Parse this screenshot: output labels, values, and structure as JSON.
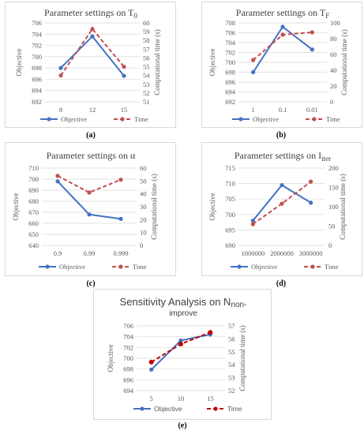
{
  "chart_data": [
    {
      "type": "line",
      "title": "Parameter settings on T",
      "title_subscript": "0",
      "categories": [
        "8",
        "12",
        "15"
      ],
      "ylabel": "Objective",
      "y2label": "Computational time (s)",
      "ylim": [
        692,
        706
      ],
      "yticks": [
        "692",
        "694",
        "696",
        "698",
        "700",
        "702",
        "704",
        "706"
      ],
      "y2lim": [
        51,
        60
      ],
      "y2ticks": [
        "51",
        "52",
        "53",
        "54",
        "55",
        "56",
        "57",
        "58",
        "59",
        "60"
      ],
      "series": [
        {
          "name": "Objective",
          "axis": "left",
          "values": [
            698.0,
            703.6,
            696.6
          ],
          "color": "#4472c4",
          "dashed": false
        },
        {
          "name": "Time",
          "axis": "right",
          "values": [
            54.0,
            59.3,
            55.0
          ],
          "color": "#c0504d",
          "dashed": true
        }
      ],
      "legend_position": "bottom",
      "caption": "(a)"
    },
    {
      "type": "line",
      "title": "Parameter settings on T",
      "title_subscript": "F",
      "categories": [
        "1",
        "0.1",
        "0.01"
      ],
      "ylabel": "Objective",
      "y2label": "Computational time (s)",
      "ylim": [
        692,
        708
      ],
      "yticks": [
        "692",
        "694",
        "696",
        "698",
        "700",
        "702",
        "704",
        "706",
        "708"
      ],
      "y2lim": [
        0,
        100
      ],
      "y2ticks": [
        "0",
        "20",
        "40",
        "60",
        "80",
        "100"
      ],
      "series": [
        {
          "name": "Objective",
          "axis": "left",
          "values": [
            698.0,
            707.2,
            702.6
          ],
          "color": "#4472c4",
          "dashed": false
        },
        {
          "name": "Time",
          "axis": "right",
          "values": [
            53,
            85,
            88
          ],
          "color": "#c0504d",
          "dashed": true
        }
      ],
      "legend_position": "bottom",
      "caption": "(b)"
    },
    {
      "type": "line",
      "title": "Parameter settings on α",
      "title_subscript": "",
      "categories": [
        "0.9",
        "0.99",
        "0.999"
      ],
      "ylabel": "Objective",
      "y2label": "Computational time (s)",
      "ylim": [
        640,
        710
      ],
      "yticks": [
        "640",
        "650",
        "660",
        "670",
        "680",
        "690",
        "700",
        "710"
      ],
      "y2lim": [
        0,
        60
      ],
      "y2ticks": [
        "0",
        "10",
        "20",
        "30",
        "40",
        "50",
        "60"
      ],
      "series": [
        {
          "name": "Objective",
          "axis": "left",
          "values": [
            698,
            668,
            664
          ],
          "color": "#4472c4",
          "dashed": false
        },
        {
          "name": "Time",
          "axis": "right",
          "values": [
            54,
            41,
            51
          ],
          "color": "#c0504d",
          "dashed": true
        }
      ],
      "legend_position": "bottom",
      "caption": "(c)"
    },
    {
      "type": "line",
      "title": "Parameter settings on I",
      "title_subscript": "iter",
      "categories": [
        "1000000",
        "2000000",
        "3000000"
      ],
      "ylabel": "Objective",
      "y2label": "Computational time (s)",
      "ylim": [
        690,
        715
      ],
      "yticks": [
        "690",
        "695",
        "700",
        "705",
        "710",
        "715"
      ],
      "y2lim": [
        0,
        200
      ],
      "y2ticks": [
        "0",
        "50",
        "100",
        "150",
        "200"
      ],
      "series": [
        {
          "name": "Objective",
          "axis": "left",
          "values": [
            698.0,
            709.5,
            703.8
          ],
          "color": "#4472c4",
          "dashed": false
        },
        {
          "name": "Time",
          "axis": "right",
          "values": [
            55,
            108,
            165
          ],
          "color": "#c0504d",
          "dashed": true
        }
      ],
      "legend_position": "bottom",
      "caption": "(d)"
    },
    {
      "type": "line",
      "title": "Sensitivity Analysis on N",
      "title_subscript": "non-improve",
      "categories": [
        "5",
        "10",
        "15"
      ],
      "ylabel": "Objective",
      "y2label": "Computational time (s)",
      "ylim": [
        694,
        706
      ],
      "yticks": [
        "694",
        "696",
        "698",
        "700",
        "702",
        "704",
        "706"
      ],
      "y2lim": [
        52,
        57
      ],
      "y2ticks": [
        "52",
        "53",
        "54",
        "55",
        "56",
        "57"
      ],
      "series": [
        {
          "name": "Objective",
          "axis": "left",
          "values": [
            697.9,
            703.3,
            704.4
          ],
          "color": "#4472c4",
          "dashed": false
        },
        {
          "name": "Time",
          "axis": "right",
          "values": [
            54.2,
            55.6,
            56.5
          ],
          "color": "#c00000",
          "dashed": true,
          "markers": "circle"
        }
      ],
      "legend_position": "bottom",
      "caption": "(e)"
    }
  ]
}
